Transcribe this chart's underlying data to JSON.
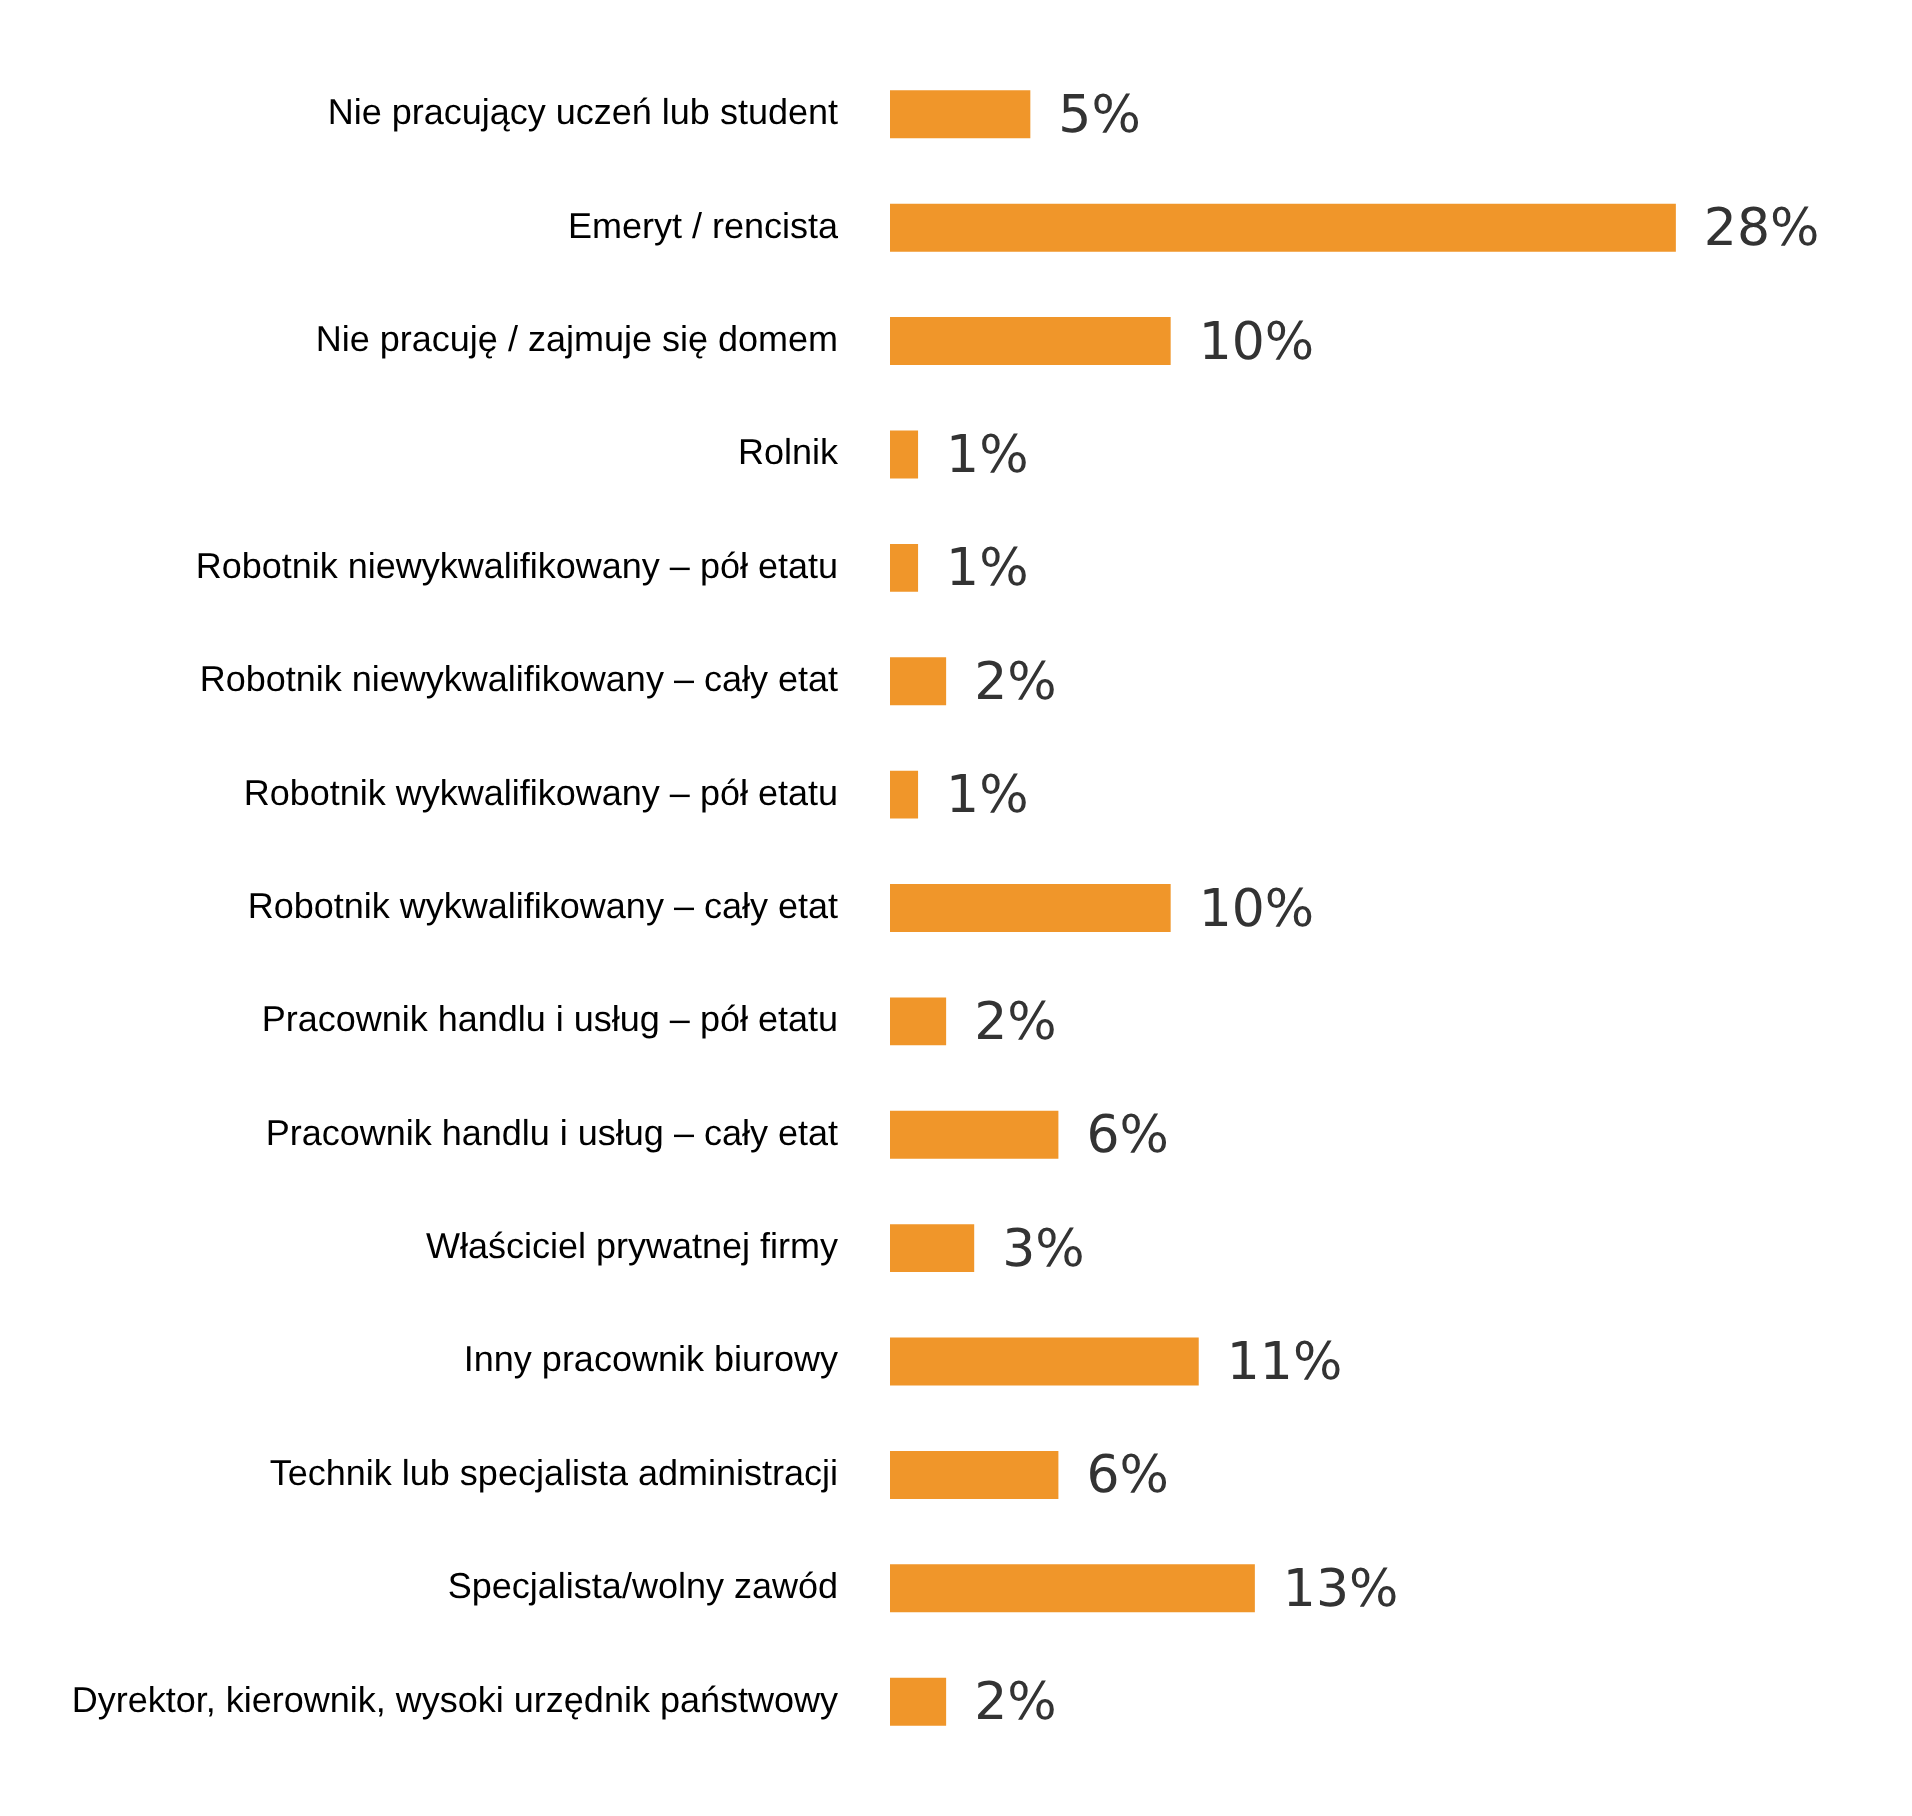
{
  "chart_data": {
    "type": "bar",
    "orientation": "horizontal",
    "categories": [
      "Nie pracujący uczeń lub student",
      "Emeryt / rencista",
      "Nie pracuję / zajmuje się domem",
      "Rolnik",
      "Robotnik niewykwalifikowany – pół etatu",
      "Robotnik niewykwalifikowany – cały etat",
      "Robotnik wykwalifikowany – pół etatu",
      "Robotnik wykwalifikowany – cały etat",
      "Pracownik handlu i usług – pół etatu",
      "Pracownik handlu i usług – cały etat",
      "Właściciel prywatnej firmy",
      "Inny pracownik biurowy",
      "Technik lub specjalista administracji",
      "Specjalista/wolny zawód",
      "Dyrektor, kierownik, wysoki urzędnik państwowy"
    ],
    "values": [
      5,
      28,
      10,
      1,
      1,
      2,
      1,
      10,
      2,
      6,
      3,
      11,
      6,
      13,
      2
    ],
    "value_labels": [
      "5%",
      "28%",
      "10%",
      "1%",
      "1%",
      "2%",
      "1%",
      "10%",
      "2%",
      "6%",
      "3%",
      "11%",
      "6%",
      "13%",
      "2%"
    ],
    "color": "#f0962a",
    "tick_labels": "y"
  }
}
